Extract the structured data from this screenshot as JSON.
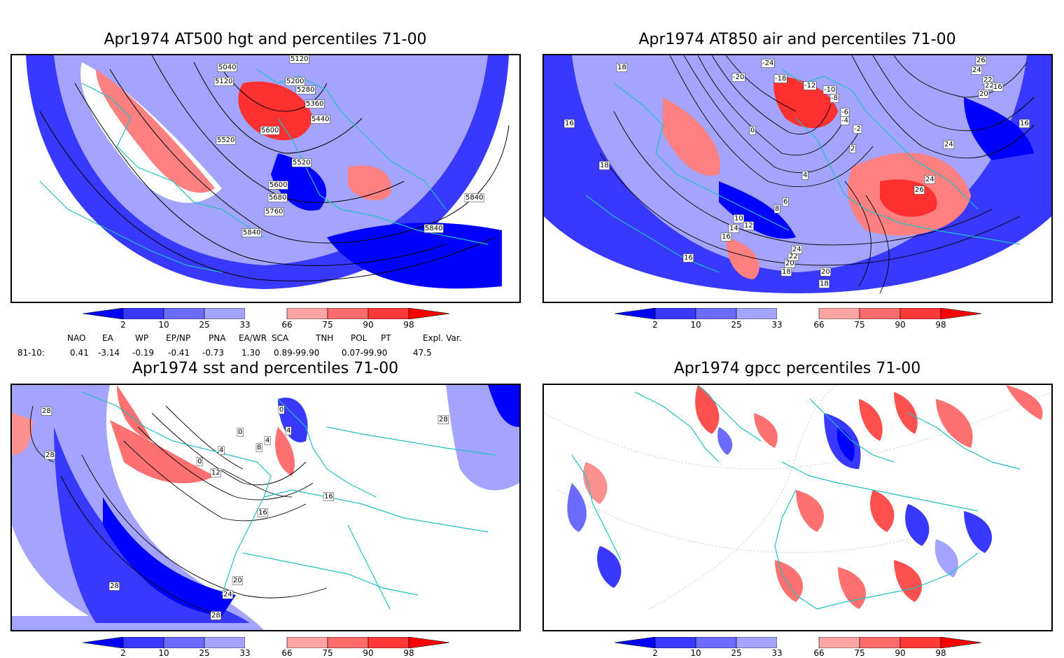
{
  "panels": [
    {
      "id": "hgt",
      "title": "Apr1974 AT500 hgt and percentiles 71-00",
      "contour_labels": [
        "5040",
        "5120",
        "5120",
        "5200",
        "5280",
        "5360",
        "5440",
        "5600",
        "5520",
        "5520",
        "5600",
        "5680",
        "5760",
        "5840",
        "5840",
        "5840"
      ]
    },
    {
      "id": "air",
      "title": "Apr1974 AT850 air and percentiles 71-00",
      "contour_labels": [
        "-24",
        "-20",
        "-18",
        "-12",
        "-10",
        "-8",
        "-6",
        "-4",
        "-2",
        "0",
        "2",
        "4",
        "6",
        "8",
        "10",
        "12",
        "14",
        "16",
        "16",
        "16",
        "18",
        "18",
        "20",
        "22",
        "24",
        "24",
        "26",
        "26",
        "24",
        "22",
        "20",
        "18",
        "16",
        "16",
        "18",
        "20",
        "22",
        "24"
      ]
    },
    {
      "id": "sst",
      "title": "Apr1974 sst and percentiles 71-00",
      "contour_labels": [
        "28",
        "28",
        "0",
        "4",
        "0",
        "4",
        "8",
        "4",
        "0",
        "12",
        "16",
        "16",
        "20",
        "24",
        "28",
        "28",
        "28"
      ]
    },
    {
      "id": "gpcc",
      "title": "Apr1974 gpcc percentiles 71-00",
      "contour_labels": []
    }
  ],
  "colorbar": {
    "labels": [
      "2",
      "10",
      "25",
      "33",
      "66",
      "75",
      "90",
      "98"
    ],
    "colors": [
      "#0000ff",
      "#3838ff",
      "#6b6bff",
      "#a4a4ff",
      "#ffffff",
      "#ffa4a4",
      "#ff6b6b",
      "#ff3838",
      "#ff0000"
    ]
  },
  "teleconnections": {
    "headers": [
      "NAO",
      "EA",
      "WP",
      "EP/NP",
      "PNA",
      "EA/WR",
      "SCA",
      "TNH",
      "POL",
      "PT",
      "Expl. Var."
    ],
    "row_label": "81-10:",
    "values": [
      "0.41",
      "-3.14",
      "-0.19",
      "-0.41",
      "-0.73",
      "1.30",
      "0.89-99.90",
      "0.07-99.90",
      "47.5"
    ]
  },
  "colors": {
    "coast": "#20c0c0",
    "contour": "#000000",
    "blue_strong": "#0000ff",
    "blue_mid": "#3838ff",
    "blue_light": "#a4a4ff",
    "red_light": "#ffa4a4",
    "red_strong": "#ff2a2a"
  }
}
